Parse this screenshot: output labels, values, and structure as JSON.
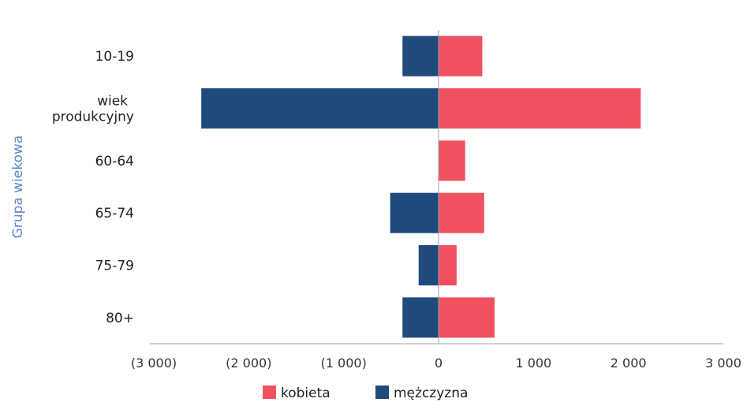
{
  "chart_data": {
    "type": "bar",
    "orientation": "horizontal",
    "stacked": "diverging",
    "title": "",
    "xlabel": "",
    "ylabel": "Grupa wiekowa",
    "categories": [
      {
        "key": "10-19",
        "lines": [
          "10-19"
        ]
      },
      {
        "key": "wiek produkcyjny",
        "lines": [
          "wiek",
          "produkcyjny"
        ]
      },
      {
        "key": "60-64",
        "lines": [
          "60-64"
        ]
      },
      {
        "key": "65-74",
        "lines": [
          "65-74"
        ]
      },
      {
        "key": "75-79",
        "lines": [
          "75-79"
        ]
      },
      {
        "key": "80+",
        "lines": [
          "80+"
        ]
      }
    ],
    "series": [
      {
        "name": "kobieta",
        "color": "#f0515e",
        "values": [
          460,
          2130,
          280,
          480,
          190,
          590
        ]
      },
      {
        "name": "mężczyzna",
        "color": "#1f4a7c",
        "values": [
          -380,
          -2500,
          0,
          -510,
          -210,
          -380
        ]
      }
    ],
    "xlim": [
      -3000,
      3000
    ],
    "xticks": [
      {
        "value": -3000,
        "label": "(3 000)"
      },
      {
        "value": -2000,
        "label": "(2 000)"
      },
      {
        "value": -1000,
        "label": "(1 000)"
      },
      {
        "value": 0,
        "label": "0"
      },
      {
        "value": 1000,
        "label": "1 000"
      },
      {
        "value": 2000,
        "label": "2 000"
      },
      {
        "value": 3000,
        "label": "3 000"
      }
    ],
    "grid": false,
    "legend_position": "bottom"
  }
}
